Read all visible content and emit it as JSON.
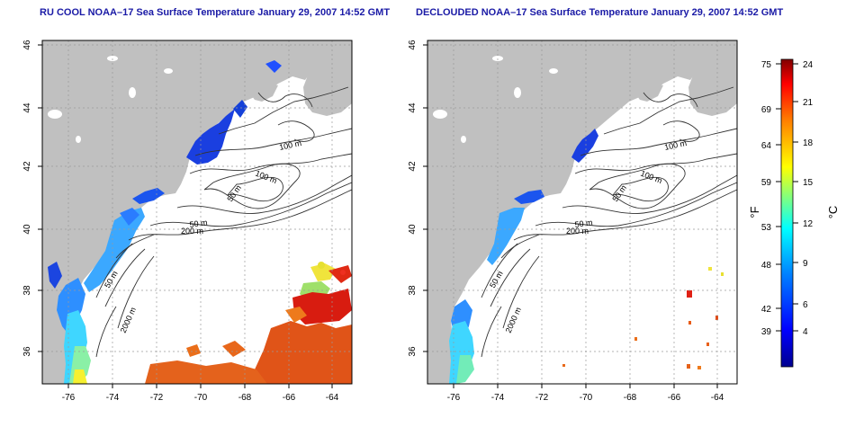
{
  "colors": {
    "land": "#c0c0c0",
    "ocean": "#ffffff",
    "frame": "#000000",
    "contour": "#333333",
    "title": "#1a1aa6"
  },
  "panels": [
    {
      "title": "RU COOL NOAA–17 Sea Surface Temperature January 29, 2007 14:52 GMT",
      "x_ticks": [
        "-76",
        "-74",
        "-72",
        "-70",
        "-68",
        "-66",
        "-64"
      ],
      "y_ticks": [
        "36",
        "38",
        "40",
        "42",
        "44",
        "46"
      ],
      "contour_labels": [
        "100 m",
        "100 m",
        "50 m",
        "50 m",
        "200 m",
        "50 m",
        "2000 m"
      ]
    },
    {
      "title": "DECLOUDED NOAA–17 Sea Surface Temperature January 29, 2007 14:52 GMT",
      "x_ticks": [
        "-76",
        "-74",
        "-72",
        "-70",
        "-68",
        "-66",
        "-64"
      ],
      "y_ticks": [
        "36",
        "38",
        "40",
        "42",
        "44",
        "46"
      ],
      "contour_labels": [
        "100 m",
        "100 m",
        "50 m",
        "50 m",
        "200 m",
        "50 m",
        "2000 m"
      ]
    }
  ],
  "colorbar": {
    "f_label": "°F",
    "c_label": "°C",
    "f_ticks": [
      "75",
      "69",
      "64",
      "59",
      "53",
      "48",
      "42",
      "39"
    ],
    "c_ticks": [
      "24",
      "21",
      "18",
      "15",
      "12",
      "9",
      "6",
      "4"
    ],
    "range_c": [
      2,
      24
    ]
  }
}
